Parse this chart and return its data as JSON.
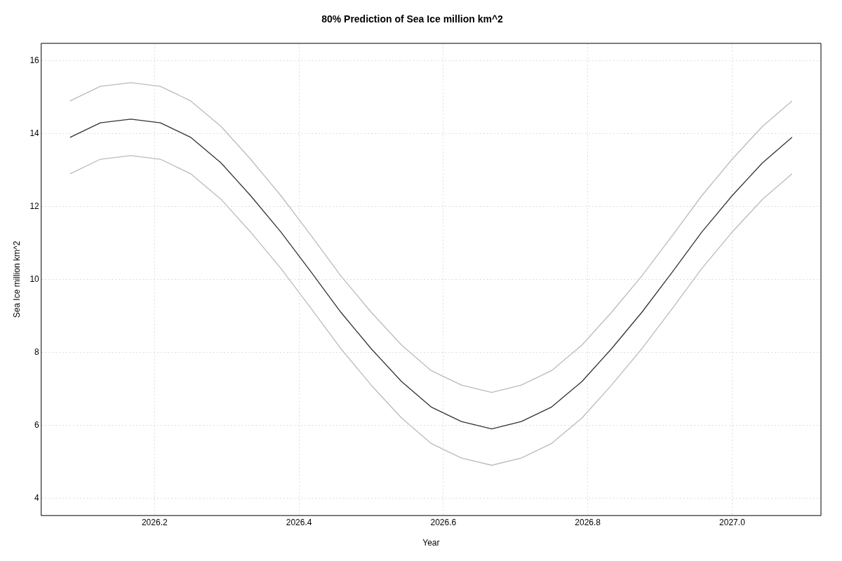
{
  "chart_data": {
    "type": "line",
    "title": "80% Prediction of Sea Ice million km^2",
    "xlabel": "Year",
    "ylabel": "Sea Ice million km^2",
    "x": [
      2026.083,
      2026.125,
      2026.167,
      2026.208,
      2026.25,
      2026.292,
      2026.333,
      2026.375,
      2026.417,
      2026.458,
      2026.5,
      2026.542,
      2026.583,
      2026.625,
      2026.667,
      2026.708,
      2026.75,
      2026.792,
      2026.833,
      2026.875,
      2026.917,
      2026.958,
      2027.0,
      2027.042,
      2027.083
    ],
    "series": [
      {
        "color": "#bbbbbb",
        "values": [
          14.9,
          15.3,
          15.4,
          15.3,
          14.9,
          14.2,
          13.3,
          12.3,
          11.2,
          10.1,
          9.1,
          8.2,
          7.5,
          7.1,
          6.9,
          7.1,
          7.5,
          8.2,
          9.1,
          10.1,
          11.2,
          12.3,
          13.3,
          14.2,
          14.9
        ]
      },
      {
        "color": "#333333",
        "values": [
          13.9,
          14.3,
          14.4,
          14.3,
          13.9,
          13.2,
          12.3,
          11.3,
          10.2,
          9.1,
          8.1,
          7.2,
          6.5,
          6.1,
          5.9,
          6.1,
          6.5,
          7.2,
          8.1,
          9.1,
          10.2,
          11.3,
          12.3,
          13.2,
          13.9
        ]
      },
      {
        "color": "#bbbbbb",
        "values": [
          12.9,
          13.3,
          13.4,
          13.3,
          12.9,
          12.2,
          11.3,
          10.3,
          9.2,
          8.1,
          7.1,
          6.2,
          5.5,
          5.1,
          4.9,
          5.1,
          5.5,
          6.2,
          7.1,
          8.1,
          9.2,
          10.3,
          11.3,
          12.2,
          12.9
        ]
      }
    ],
    "xlim": [
      2026.043,
      2027.123
    ],
    "ylim": [
      3.52,
      16.48
    ],
    "xticks": [
      2026.2,
      2026.4,
      2026.6,
      2026.8,
      {
        "value": 2027,
        "label": "2027.0"
      }
    ],
    "yticks": [
      4,
      6,
      8,
      10,
      12,
      14,
      16
    ],
    "grid": true,
    "legend": false,
    "marker": "none",
    "line_style": "solid"
  }
}
